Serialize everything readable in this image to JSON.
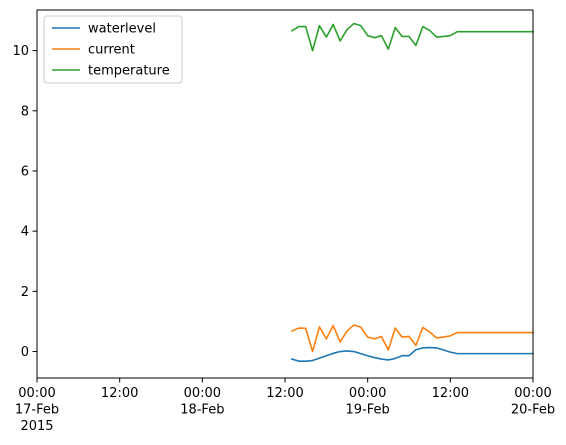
{
  "chart_data": {
    "type": "line",
    "title": "",
    "xlabel": "",
    "ylabel": "",
    "x_range": [
      "2015-02-17T00:00",
      "2015-02-20T00:00"
    ],
    "ylim": [
      -0.88,
      11.35
    ],
    "grid": false,
    "legend_position": "upper left",
    "x_ticks": [
      {
        "value": "2015-02-17T00:00",
        "lines": [
          "00:00",
          "17-Feb",
          "2015"
        ]
      },
      {
        "value": "2015-02-17T12:00",
        "lines": [
          "12:00"
        ]
      },
      {
        "value": "2015-02-18T00:00",
        "lines": [
          "00:00",
          "18-Feb"
        ]
      },
      {
        "value": "2015-02-18T12:00",
        "lines": [
          "12:00"
        ]
      },
      {
        "value": "2015-02-19T00:00",
        "lines": [
          "00:00",
          "19-Feb"
        ]
      },
      {
        "value": "2015-02-19T12:00",
        "lines": [
          "12:00"
        ]
      },
      {
        "value": "2015-02-20T00:00",
        "lines": [
          "00:00",
          "20-Feb"
        ]
      }
    ],
    "y_ticks": [
      {
        "value": 0,
        "label": "0"
      },
      {
        "value": 2,
        "label": "2"
      },
      {
        "value": 4,
        "label": "4"
      },
      {
        "value": 6,
        "label": "6"
      },
      {
        "value": 8,
        "label": "8"
      },
      {
        "value": 10,
        "label": "10"
      }
    ],
    "series": [
      {
        "name": "waterlevel",
        "color": "#1f77b4",
        "points": [
          [
            "2015-02-18T13:00",
            -0.25
          ],
          [
            "2015-02-18T14:00",
            -0.32
          ],
          [
            "2015-02-18T15:00",
            -0.32
          ],
          [
            "2015-02-18T16:00",
            -0.3
          ],
          [
            "2015-02-18T17:00",
            -0.22
          ],
          [
            "2015-02-18T18:00",
            -0.14
          ],
          [
            "2015-02-18T19:00",
            -0.06
          ],
          [
            "2015-02-18T20:00",
            0.0
          ],
          [
            "2015-02-18T21:00",
            0.02
          ],
          [
            "2015-02-18T22:00",
            0.0
          ],
          [
            "2015-02-18T23:00",
            -0.07
          ],
          [
            "2015-02-19T00:00",
            -0.14
          ],
          [
            "2015-02-19T01:00",
            -0.2
          ],
          [
            "2015-02-19T02:00",
            -0.25
          ],
          [
            "2015-02-19T03:00",
            -0.28
          ],
          [
            "2015-02-19T04:00",
            -0.23
          ],
          [
            "2015-02-19T05:00",
            -0.14
          ],
          [
            "2015-02-19T06:00",
            -0.14
          ],
          [
            "2015-02-19T07:00",
            0.06
          ],
          [
            "2015-02-19T08:00",
            0.12
          ],
          [
            "2015-02-19T09:00",
            0.13
          ],
          [
            "2015-02-19T10:00",
            0.12
          ],
          [
            "2015-02-19T11:00",
            0.05
          ],
          [
            "2015-02-19T12:00",
            -0.02
          ],
          [
            "2015-02-19T13:00",
            -0.07
          ],
          [
            "2015-02-19T14:00",
            -0.07
          ],
          [
            "2015-02-20T00:00",
            -0.07
          ]
        ]
      },
      {
        "name": "current",
        "color": "#ff7f0e",
        "points": [
          [
            "2015-02-18T13:00",
            0.68
          ],
          [
            "2015-02-18T14:00",
            0.78
          ],
          [
            "2015-02-18T15:00",
            0.77
          ],
          [
            "2015-02-18T16:00",
            0.0
          ],
          [
            "2015-02-18T17:00",
            0.82
          ],
          [
            "2015-02-18T18:00",
            0.42
          ],
          [
            "2015-02-18T19:00",
            0.86
          ],
          [
            "2015-02-18T20:00",
            0.32
          ],
          [
            "2015-02-18T21:00",
            0.68
          ],
          [
            "2015-02-18T22:00",
            0.88
          ],
          [
            "2015-02-18T23:00",
            0.81
          ],
          [
            "2015-02-19T00:00",
            0.48
          ],
          [
            "2015-02-19T01:00",
            0.42
          ],
          [
            "2015-02-19T02:00",
            0.5
          ],
          [
            "2015-02-19T03:00",
            0.05
          ],
          [
            "2015-02-19T04:00",
            0.78
          ],
          [
            "2015-02-19T05:00",
            0.48
          ],
          [
            "2015-02-19T06:00",
            0.5
          ],
          [
            "2015-02-19T07:00",
            0.2
          ],
          [
            "2015-02-19T08:00",
            0.8
          ],
          [
            "2015-02-19T09:00",
            0.65
          ],
          [
            "2015-02-19T10:00",
            0.45
          ],
          [
            "2015-02-19T11:00",
            0.48
          ],
          [
            "2015-02-19T12:00",
            0.52
          ],
          [
            "2015-02-19T13:00",
            0.63
          ],
          [
            "2015-02-19T14:00",
            0.63
          ],
          [
            "2015-02-20T00:00",
            0.63
          ]
        ]
      },
      {
        "name": "temperature",
        "color": "#2ca02c",
        "points": [
          [
            "2015-02-18T13:00",
            10.66
          ],
          [
            "2015-02-18T14:00",
            10.8
          ],
          [
            "2015-02-18T15:00",
            10.8
          ],
          [
            "2015-02-18T16:00",
            10.0
          ],
          [
            "2015-02-18T17:00",
            10.83
          ],
          [
            "2015-02-18T18:00",
            10.45
          ],
          [
            "2015-02-18T19:00",
            10.87
          ],
          [
            "2015-02-18T20:00",
            10.32
          ],
          [
            "2015-02-18T21:00",
            10.7
          ],
          [
            "2015-02-18T22:00",
            10.9
          ],
          [
            "2015-02-18T23:00",
            10.83
          ],
          [
            "2015-02-19T00:00",
            10.5
          ],
          [
            "2015-02-19T01:00",
            10.43
          ],
          [
            "2015-02-19T02:00",
            10.5
          ],
          [
            "2015-02-19T03:00",
            10.05
          ],
          [
            "2015-02-19T04:00",
            10.77
          ],
          [
            "2015-02-19T05:00",
            10.47
          ],
          [
            "2015-02-19T06:00",
            10.47
          ],
          [
            "2015-02-19T07:00",
            10.17
          ],
          [
            "2015-02-19T08:00",
            10.8
          ],
          [
            "2015-02-19T09:00",
            10.67
          ],
          [
            "2015-02-19T10:00",
            10.45
          ],
          [
            "2015-02-19T11:00",
            10.47
          ],
          [
            "2015-02-19T12:00",
            10.5
          ],
          [
            "2015-02-19T13:00",
            10.63
          ],
          [
            "2015-02-19T14:00",
            10.63
          ],
          [
            "2015-02-20T00:00",
            10.63
          ]
        ]
      }
    ]
  }
}
